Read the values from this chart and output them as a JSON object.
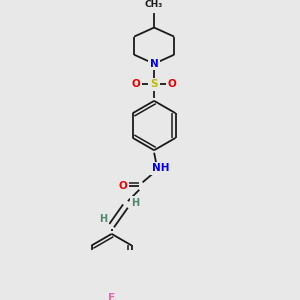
{
  "background_color": "#e8e8e8",
  "bond_color": "#1a1a1a",
  "atom_colors": {
    "N": "#0000ee",
    "O": "#ee0000",
    "S": "#bbbb00",
    "F": "#ee66aa",
    "C": "#1a1a1a",
    "H": "#4a8a6a"
  },
  "lw": 1.3,
  "lw2": 1.1,
  "fs": 7.5,
  "fs_small": 6.5
}
